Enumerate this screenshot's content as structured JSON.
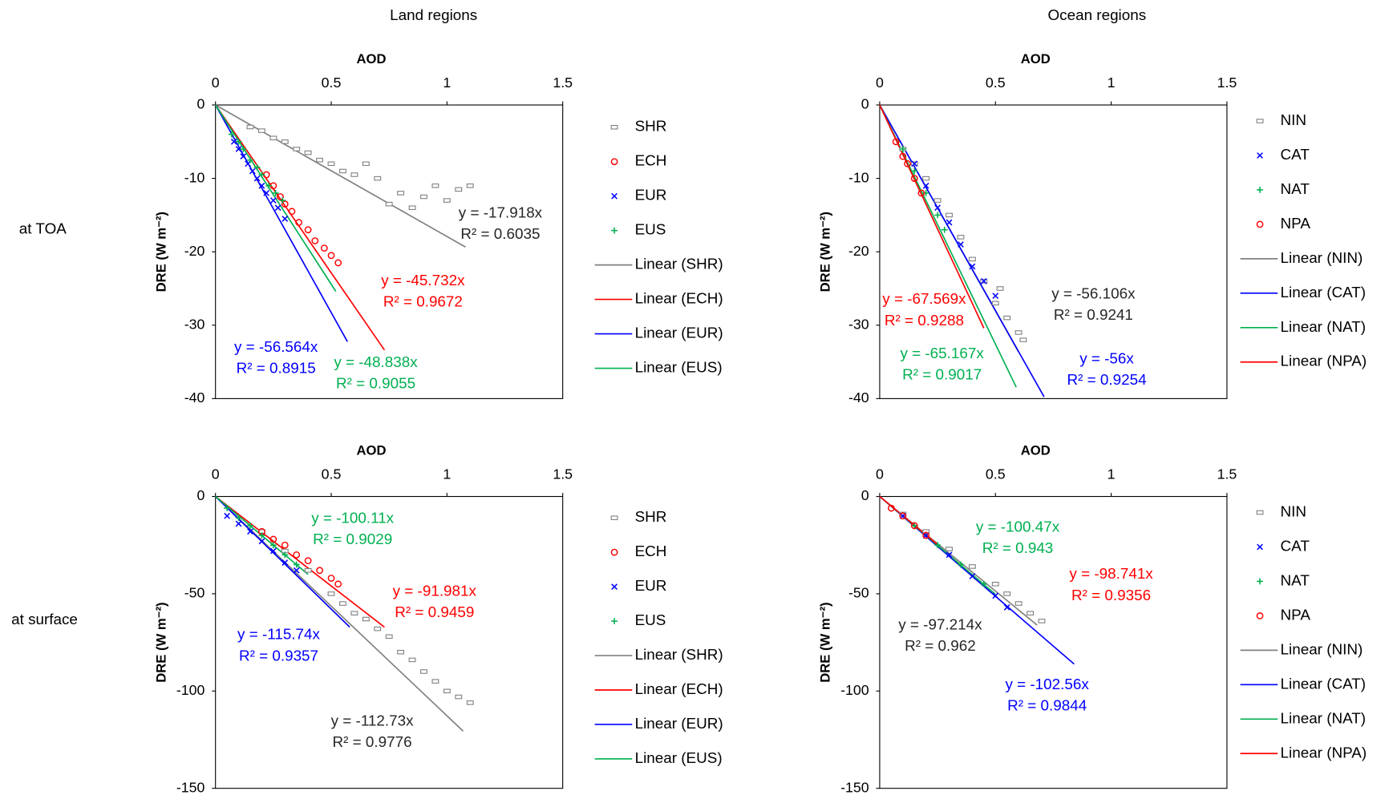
{
  "figure": {
    "column_titles": [
      "Land regions",
      "Ocean regions"
    ],
    "row_labels": [
      "at TOA",
      "at surface"
    ]
  },
  "chart_data": [
    {
      "type": "scatter",
      "xlabel": "AOD",
      "ylabel": "DRE (W m⁻²)",
      "xlim": [
        0,
        1.5
      ],
      "xticks": [
        0,
        0.5,
        1,
        1.5
      ],
      "ylim": [
        -40,
        0
      ],
      "yticks": [
        0,
        -10,
        -20,
        -30,
        -40
      ],
      "series": [
        {
          "name": "SHR",
          "color": "#808080",
          "marker": "square",
          "x": [
            0.15,
            0.2,
            0.25,
            0.3,
            0.35,
            0.4,
            0.45,
            0.5,
            0.55,
            0.6,
            0.65,
            0.7,
            0.75,
            0.8,
            0.85,
            0.9,
            0.95,
            1.0,
            1.05,
            1.1
          ],
          "values": [
            -3,
            -3.5,
            -4.5,
            -5,
            -6,
            -6.5,
            -7.5,
            -8,
            -9,
            -9.5,
            -8,
            -10,
            -13.5,
            -12,
            -14,
            -12.5,
            -11,
            -13,
            -11.5,
            -11
          ]
        },
        {
          "name": "ECH",
          "color": "#ff0000",
          "marker": "circle",
          "x": [
            0.22,
            0.25,
            0.28,
            0.3,
            0.33,
            0.36,
            0.4,
            0.43,
            0.47,
            0.5,
            0.53
          ],
          "values": [
            -9.5,
            -11,
            -12.5,
            -13.5,
            -14.5,
            -16,
            -17,
            -18.5,
            -19.5,
            -20.5,
            -21.5
          ]
        },
        {
          "name": "EUR",
          "color": "#0000ff",
          "marker": "x",
          "x": [
            0.08,
            0.1,
            0.12,
            0.14,
            0.16,
            0.18,
            0.2,
            0.22,
            0.25,
            0.27,
            0.3
          ],
          "values": [
            -5,
            -6,
            -7,
            -8,
            -9,
            -10,
            -11,
            -12,
            -13,
            -14,
            -15.5
          ]
        },
        {
          "name": "EUS",
          "color": "#00b050",
          "marker": "plus",
          "x": [
            0.07,
            0.1,
            0.12,
            0.15,
            0.18,
            0.2,
            0.23,
            0.26,
            0.29
          ],
          "values": [
            -4,
            -5,
            -6,
            -7.5,
            -8.5,
            -9.5,
            -11,
            -12,
            -13
          ]
        }
      ],
      "trendlines": [
        {
          "name": "Linear (SHR)",
          "color": "#808080",
          "slope": -17.918,
          "label": "y = -17.918x",
          "r2": 0.6035,
          "r2_label": "R² = 0.6035",
          "x_end": 1.08
        },
        {
          "name": "Linear (ECH)",
          "color": "#ff0000",
          "slope": -45.732,
          "label": "y = -45.732x",
          "r2": 0.9672,
          "r2_label": "R² = 0.9672",
          "x_end": 0.73
        },
        {
          "name": "Linear (EUR)",
          "color": "#0000ff",
          "slope": -56.564,
          "label": "y = -56.564x",
          "r2": 0.8915,
          "r2_label": "R² = 0.8915",
          "x_end": 0.57
        },
        {
          "name": "Linear (EUS)",
          "color": "#00b050",
          "slope": -48.838,
          "label": "y = -48.838x",
          "r2": 0.9055,
          "r2_label": "R² = 0.9055",
          "x_end": 0.52
        }
      ]
    },
    {
      "type": "scatter",
      "xlabel": "AOD",
      "ylabel": "DRE (W m⁻²)",
      "xlim": [
        0,
        1.5
      ],
      "xticks": [
        0,
        0.5,
        1,
        1.5
      ],
      "ylim": [
        -40,
        0
      ],
      "yticks": [
        0,
        -10,
        -20,
        -30,
        -40
      ],
      "series": [
        {
          "name": "NIN",
          "color": "#808080",
          "marker": "square",
          "x": [
            0.1,
            0.15,
            0.2,
            0.25,
            0.3,
            0.35,
            0.4,
            0.45,
            0.5,
            0.52,
            0.55,
            0.6,
            0.62
          ],
          "values": [
            -6,
            -8,
            -10,
            -13,
            -15,
            -18,
            -21,
            -24,
            -27,
            -25,
            -29,
            -31,
            -32
          ]
        },
        {
          "name": "CAT",
          "color": "#0000ff",
          "marker": "x",
          "x": [
            0.15,
            0.2,
            0.25,
            0.3,
            0.35,
            0.4,
            0.45,
            0.5
          ],
          "values": [
            -8,
            -11,
            -14,
            -16,
            -19,
            -22,
            -24,
            -26
          ]
        },
        {
          "name": "NAT",
          "color": "#00b050",
          "marker": "plus",
          "x": [
            0.1,
            0.15,
            0.2,
            0.25,
            0.28
          ],
          "values": [
            -6,
            -9,
            -12,
            -15,
            -17
          ]
        },
        {
          "name": "NPA",
          "color": "#ff0000",
          "marker": "circle",
          "x": [
            0.07,
            0.1,
            0.12,
            0.15,
            0.18
          ],
          "values": [
            -5,
            -7,
            -8,
            -10,
            -12
          ]
        }
      ],
      "trendlines": [
        {
          "name": "Linear (NIN)",
          "color": "#808080",
          "slope": -56.106,
          "label": "y = -56.106x",
          "r2": 0.9241,
          "r2_label": "R² = 0.9241",
          "x_end": 0.6
        },
        {
          "name": "Linear (CAT)",
          "color": "#0000ff",
          "slope": -56,
          "label": "y = -56x",
          "r2": 0.9254,
          "r2_label": "R² = 0.9254",
          "x_end": 0.71
        },
        {
          "name": "Linear (NAT)",
          "color": "#00b050",
          "slope": -65.167,
          "label": "y = -65.167x",
          "r2": 0.9017,
          "r2_label": "R² = 0.9017",
          "x_end": 0.59
        },
        {
          "name": "Linear (NPA)",
          "color": "#ff0000",
          "slope": -67.569,
          "label": "y = -67.569x",
          "r2": 0.9288,
          "r2_label": "R² = 0.9288",
          "x_end": 0.45
        }
      ]
    },
    {
      "type": "scatter",
      "xlabel": "AOD",
      "ylabel": "DRE (W m⁻²)",
      "xlim": [
        0,
        1.5
      ],
      "xticks": [
        0,
        0.5,
        1,
        1.5
      ],
      "ylim": [
        -150,
        0
      ],
      "yticks": [
        0,
        -50,
        -100,
        -150
      ],
      "series": [
        {
          "name": "SHR",
          "color": "#808080",
          "marker": "square",
          "x": [
            0.2,
            0.3,
            0.4,
            0.5,
            0.55,
            0.6,
            0.65,
            0.7,
            0.75,
            0.8,
            0.85,
            0.9,
            0.95,
            1.0,
            1.05,
            1.1
          ],
          "values": [
            -18,
            -28,
            -38,
            -50,
            -55,
            -60,
            -63,
            -68,
            -72,
            -80,
            -84,
            -90,
            -95,
            -100,
            -103,
            -106
          ]
        },
        {
          "name": "ECH",
          "color": "#ff0000",
          "marker": "circle",
          "x": [
            0.2,
            0.25,
            0.3,
            0.35,
            0.4,
            0.45,
            0.5,
            0.53
          ],
          "values": [
            -18,
            -22,
            -25,
            -30,
            -33,
            -38,
            -42,
            -45
          ]
        },
        {
          "name": "EUR",
          "color": "#0000ff",
          "marker": "x",
          "x": [
            0.05,
            0.1,
            0.15,
            0.2,
            0.25,
            0.3,
            0.35
          ],
          "values": [
            -10,
            -14,
            -18,
            -23,
            -28,
            -34,
            -38
          ]
        },
        {
          "name": "EUS",
          "color": "#00b050",
          "marker": "plus",
          "x": [
            0.05,
            0.1,
            0.15,
            0.2,
            0.25,
            0.3,
            0.35
          ],
          "values": [
            -6,
            -11,
            -15,
            -20,
            -25,
            -30,
            -35
          ]
        }
      ],
      "trendlines": [
        {
          "name": "Linear (SHR)",
          "color": "#808080",
          "slope": -112.73,
          "label": "y = -112.73x",
          "r2": 0.9776,
          "r2_label": "R² = 0.9776",
          "x_end": 1.07
        },
        {
          "name": "Linear (ECH)",
          "color": "#ff0000",
          "slope": -91.981,
          "label": "y = -91.981x",
          "r2": 0.9459,
          "r2_label": "R² = 0.9459",
          "x_end": 0.73
        },
        {
          "name": "Linear (EUR)",
          "color": "#0000ff",
          "slope": -115.74,
          "label": "y = -115.74x",
          "r2": 0.9357,
          "r2_label": "R² = 0.9357",
          "x_end": 0.58
        },
        {
          "name": "Linear (EUS)",
          "color": "#00b050",
          "slope": -100.11,
          "label": "y = -100.11x",
          "r2": 0.9029,
          "r2_label": "R² = 0.9029",
          "x_end": 0.4
        }
      ]
    },
    {
      "type": "scatter",
      "xlabel": "AOD",
      "ylabel": "DRE (W m⁻²)",
      "xlim": [
        0,
        1.5
      ],
      "xticks": [
        0,
        0.5,
        1,
        1.5
      ],
      "ylim": [
        -150,
        0
      ],
      "yticks": [
        0,
        -50,
        -100,
        -150
      ],
      "series": [
        {
          "name": "NIN",
          "color": "#808080",
          "marker": "square",
          "x": [
            0.1,
            0.2,
            0.3,
            0.4,
            0.5,
            0.55,
            0.6,
            0.65,
            0.7
          ],
          "values": [
            -9,
            -18,
            -27,
            -36,
            -45,
            -50,
            -55,
            -60,
            -64
          ]
        },
        {
          "name": "CAT",
          "color": "#0000ff",
          "marker": "x",
          "x": [
            0.1,
            0.2,
            0.3,
            0.4,
            0.5,
            0.55
          ],
          "values": [
            -10,
            -20,
            -30,
            -41,
            -51,
            -57
          ]
        },
        {
          "name": "NAT",
          "color": "#00b050",
          "marker": "plus",
          "x": [
            0.15,
            0.25,
            0.35,
            0.45
          ],
          "values": [
            -15,
            -25,
            -35,
            -45
          ]
        },
        {
          "name": "NPA",
          "color": "#ff0000",
          "marker": "circle",
          "x": [
            0.05,
            0.1,
            0.15,
            0.2
          ],
          "values": [
            -6,
            -10,
            -15,
            -20
          ]
        }
      ],
      "trendlines": [
        {
          "name": "Linear (NIN)",
          "color": "#808080",
          "slope": -97.214,
          "label": "y = -97.214x",
          "r2": 0.962,
          "r2_label": "R² = 0.962",
          "x_end": 0.68
        },
        {
          "name": "Linear (CAT)",
          "color": "#0000ff",
          "slope": -102.56,
          "label": "y = -102.56x",
          "r2": 0.9844,
          "r2_label": "R² = 0.9844",
          "x_end": 0.84
        },
        {
          "name": "Linear (NAT)",
          "color": "#00b050",
          "slope": -100.47,
          "label": "y = -100.47x",
          "r2": 0.943,
          "r2_label": "R² = 0.943",
          "x_end": 0.5
        },
        {
          "name": "Linear (NPA)",
          "color": "#ff0000",
          "slope": -98.741,
          "label": "y = -98.741x",
          "r2": 0.9356,
          "r2_label": "R² = 0.9356",
          "x_end": 0.25
        }
      ]
    }
  ]
}
